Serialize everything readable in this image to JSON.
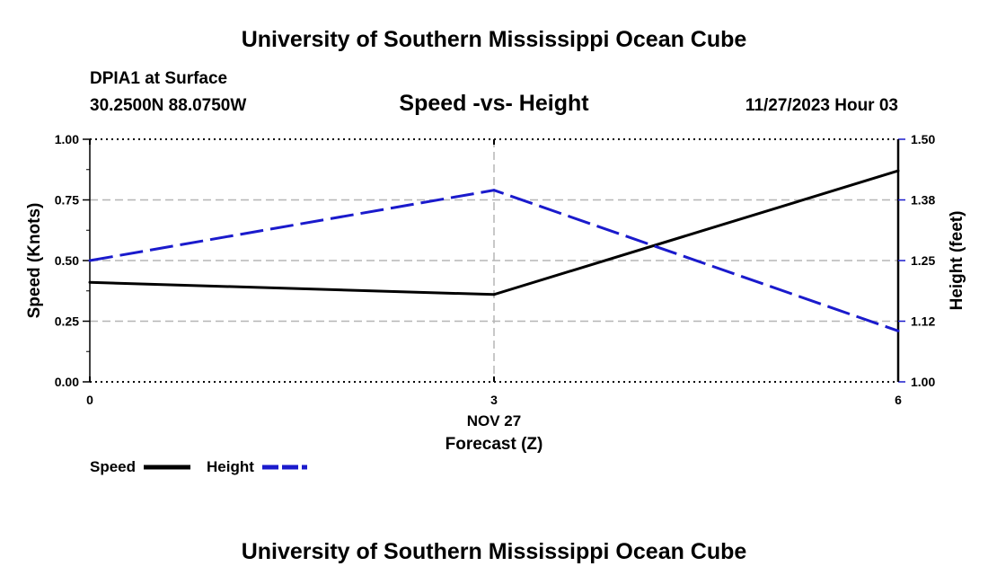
{
  "header": {
    "title": "University of Southern Mississippi Ocean Cube",
    "station": "DPIA1 at Surface",
    "coordinates": "30.2500N  88.0750W",
    "chart_title": "Speed -vs- Height",
    "datetime": "11/27/2023 Hour 03"
  },
  "footer": {
    "title": "University of Southern Mississippi Ocean Cube"
  },
  "chart_data": {
    "type": "line",
    "title": "Speed -vs- Height",
    "x": [
      0,
      3,
      6
    ],
    "x_ticks": [
      0,
      3,
      6
    ],
    "x_tick_labels": [
      "0",
      "3",
      "6"
    ],
    "x_date_label": "NOV 27",
    "xlabel": "Forecast (Z)",
    "xlim": [
      0,
      6
    ],
    "ylabel": "Speed (Knots)",
    "ylim": [
      0,
      1
    ],
    "y_ticks": [
      "0.00",
      "0.25",
      "0.50",
      "0.75",
      "1.00"
    ],
    "y2label": "Height (feet)",
    "y2lim": [
      1,
      1.5
    ],
    "y2_ticks": [
      "1.00",
      "1.12",
      "1.25",
      "1.38",
      "1.50"
    ],
    "grid": true,
    "legend_position": "bottom-left",
    "series": [
      {
        "name": "Speed",
        "axis": "left",
        "values": [
          0.41,
          0.36,
          0.87
        ],
        "color": "#000000",
        "style": "solid"
      },
      {
        "name": "Height",
        "axis": "right",
        "values": [
          1.25,
          1.395,
          1.105
        ],
        "color": "#1a1acc",
        "style": "dashed"
      }
    ]
  }
}
